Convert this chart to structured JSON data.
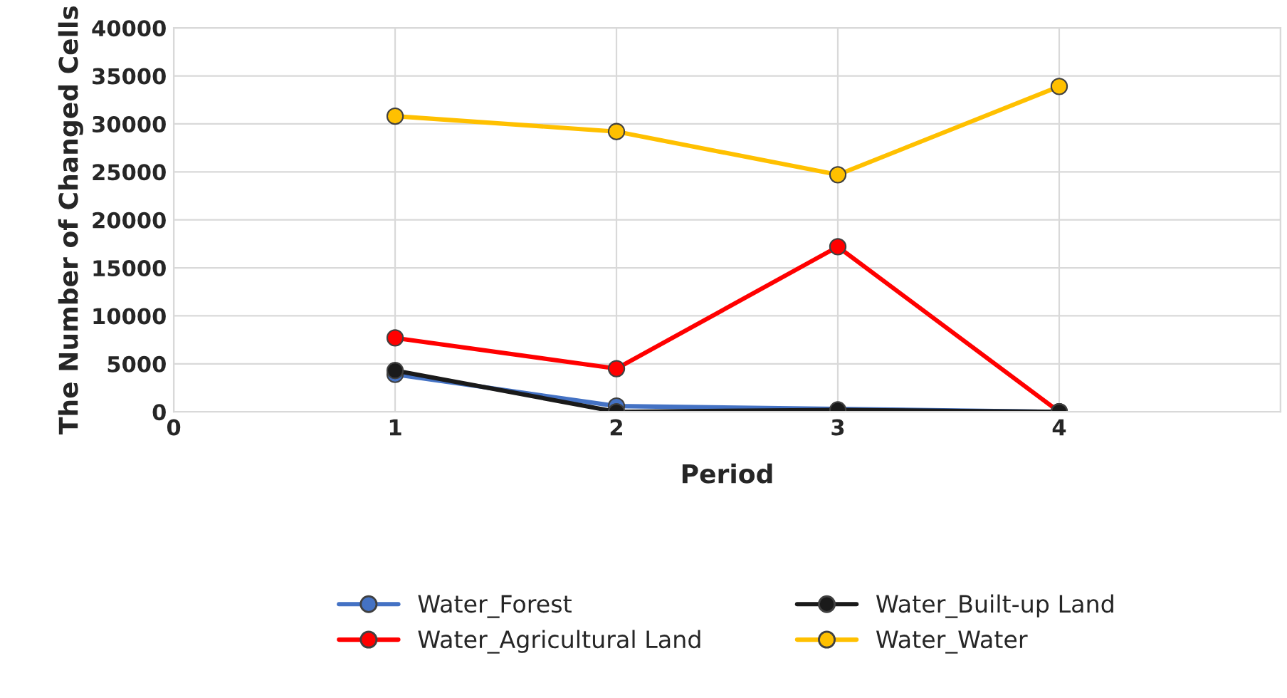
{
  "chart_data": {
    "type": "line",
    "xlabel": "Period",
    "ylabel": "The Number of Changed Cells",
    "x": [
      1,
      2,
      3,
      4
    ],
    "series": [
      {
        "name": "Water_Forest",
        "color": "#4472c4",
        "values": [
          3900,
          600,
          null,
          0
        ]
      },
      {
        "name": "Water_Agricultural Land",
        "color": "#ff0000",
        "values": [
          7700,
          4500,
          17200,
          0
        ]
      },
      {
        "name": "Water_Built-up Land",
        "color": "#1a1a1a",
        "values": [
          4300,
          0,
          200,
          0
        ]
      },
      {
        "name": "Water_Water",
        "color": "#ffc000",
        "values": [
          30800,
          29200,
          24700,
          33900
        ]
      }
    ],
    "xlim": [
      0,
      5
    ],
    "xticks": [
      0,
      1,
      2,
      3,
      4,
      {
        "value": 5,
        "label": null
      }
    ],
    "ylim": [
      0,
      40000
    ],
    "yticks": [
      0,
      5000,
      10000,
      15000,
      20000,
      25000,
      30000,
      35000,
      40000
    ],
    "grid": true,
    "legend": "bottom",
    "marker": "circle",
    "line_style": "solid"
  }
}
